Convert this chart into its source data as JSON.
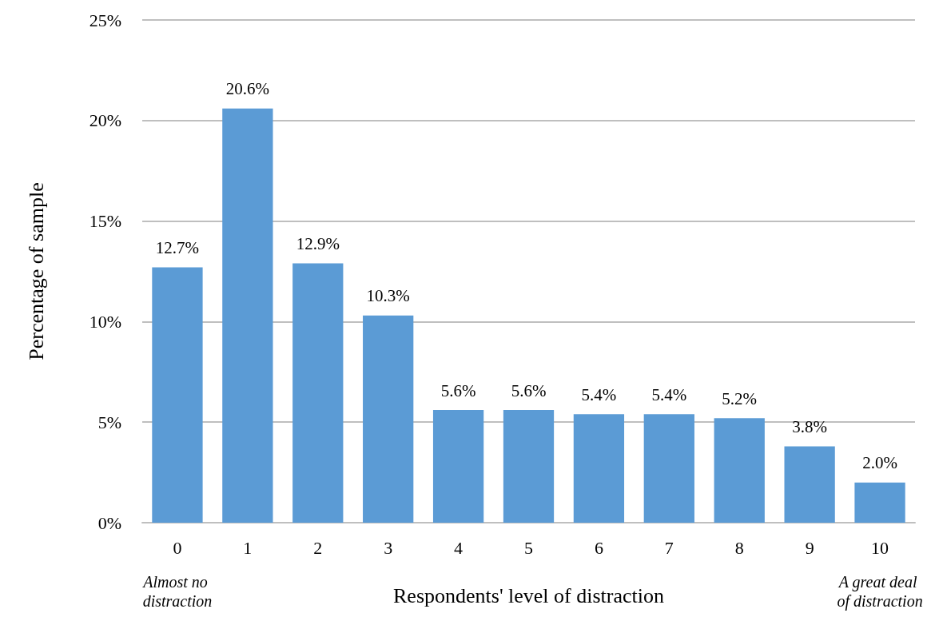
{
  "chart_data": {
    "type": "bar",
    "xlabel": "Respondents' level of distraction",
    "ylabel": "Percentage of sample",
    "categories": [
      "0",
      "1",
      "2",
      "3",
      "4",
      "5",
      "6",
      "7",
      "8",
      "9",
      "10"
    ],
    "values": [
      12.7,
      20.6,
      12.9,
      10.3,
      5.6,
      5.6,
      5.4,
      5.4,
      5.2,
      3.8,
      2.0
    ],
    "value_labels": [
      "12.7%",
      "20.6%",
      "12.9%",
      "10.3%",
      "5.6%",
      "5.6%",
      "5.4%",
      "5.4%",
      "5.2%",
      "3.8%",
      "2.0%"
    ],
    "color": "#5b9bd5",
    "ylim": [
      0,
      25
    ],
    "yticks": [
      {
        "value": 0,
        "label": "0%"
      },
      {
        "value": 5,
        "label": "5%"
      },
      {
        "value": 10,
        "label": "10%"
      },
      {
        "value": 15,
        "label": "15%"
      },
      {
        "value": 20,
        "label": "20%"
      },
      {
        "value": 25,
        "label": "25%"
      }
    ],
    "grid": "y",
    "annotations": [
      "Almost no distraction",
      "A great deal of distraction"
    ]
  }
}
